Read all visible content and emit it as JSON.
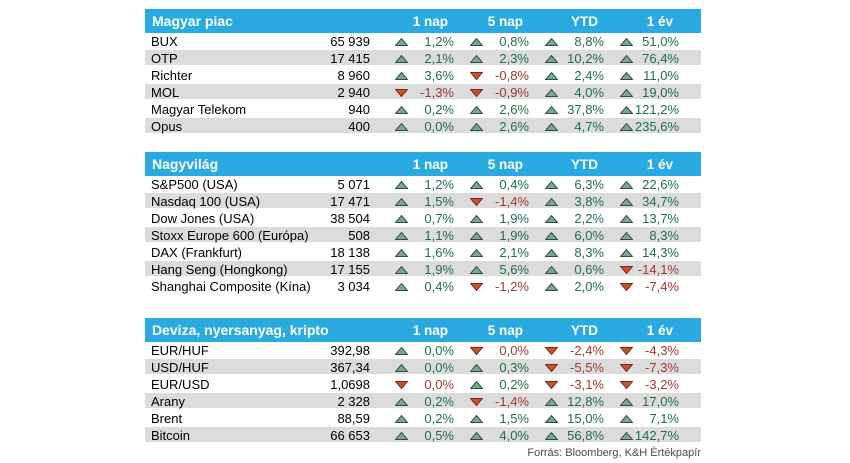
{
  "columns": [
    "1 nap",
    "5 nap",
    "YTD",
    "1 év"
  ],
  "footer": {
    "text": "Forrás: Bloomberg, K&H Értékpapír"
  },
  "colors": {
    "header_bg": "#29ABE2",
    "header_text": "#FFFFFF",
    "row_alt_bg": "#DCDCDC",
    "up_text": "#1E7048",
    "down_text": "#A0392F",
    "up_fill": "#7FA58D",
    "up_border": "#27553C",
    "down_fill": "#CC5229",
    "down_border": "#7E2817"
  },
  "tables": [
    {
      "title": "Magyar piac",
      "rows": [
        {
          "name": "BUX",
          "value": "65 939",
          "changes": [
            {
              "dir": "up",
              "text": "1,2%"
            },
            {
              "dir": "up",
              "text": "0,8%"
            },
            {
              "dir": "up",
              "text": "8,8%"
            },
            {
              "dir": "up",
              "text": "51,0%"
            }
          ]
        },
        {
          "name": "OTP",
          "value": "17 415",
          "changes": [
            {
              "dir": "up",
              "text": "2,1%"
            },
            {
              "dir": "up",
              "text": "2,3%"
            },
            {
              "dir": "up",
              "text": "10,2%"
            },
            {
              "dir": "up",
              "text": "76,4%"
            }
          ]
        },
        {
          "name": "Richter",
          "value": "8 960",
          "changes": [
            {
              "dir": "up",
              "text": "3,6%"
            },
            {
              "dir": "down",
              "text": "-0,8%"
            },
            {
              "dir": "up",
              "text": "2,4%"
            },
            {
              "dir": "up",
              "text": "11,0%"
            }
          ]
        },
        {
          "name": "MOL",
          "value": "2 940",
          "changes": [
            {
              "dir": "down",
              "text": "-1,3%"
            },
            {
              "dir": "down",
              "text": "-0,9%"
            },
            {
              "dir": "up",
              "text": "4,0%"
            },
            {
              "dir": "up",
              "text": "19,0%"
            }
          ]
        },
        {
          "name": "Magyar Telekom",
          "value": "940",
          "changes": [
            {
              "dir": "up",
              "text": "0,2%"
            },
            {
              "dir": "up",
              "text": "2,6%"
            },
            {
              "dir": "up",
              "text": "37,8%"
            },
            {
              "dir": "up",
              "text": "121,2%"
            }
          ]
        },
        {
          "name": "Opus",
          "value": "400",
          "changes": [
            {
              "dir": "up",
              "text": "0,0%"
            },
            {
              "dir": "up",
              "text": "2,6%"
            },
            {
              "dir": "up",
              "text": "4,7%"
            },
            {
              "dir": "up",
              "text": "235,6%"
            }
          ]
        }
      ]
    },
    {
      "title": "Nagyvilág",
      "rows": [
        {
          "name": "S&P500 (USA)",
          "value": "5 071",
          "changes": [
            {
              "dir": "up",
              "text": "1,2%"
            },
            {
              "dir": "up",
              "text": "0,4%"
            },
            {
              "dir": "up",
              "text": "6,3%"
            },
            {
              "dir": "up",
              "text": "22,6%"
            }
          ]
        },
        {
          "name": "Nasdaq 100 (USA)",
          "value": "17 471",
          "changes": [
            {
              "dir": "up",
              "text": "1,5%"
            },
            {
              "dir": "down",
              "text": "-1,4%"
            },
            {
              "dir": "up",
              "text": "3,8%"
            },
            {
              "dir": "up",
              "text": "34,7%"
            }
          ]
        },
        {
          "name": "Dow Jones (USA)",
          "value": "38 504",
          "changes": [
            {
              "dir": "up",
              "text": "0,7%"
            },
            {
              "dir": "up",
              "text": "1,9%"
            },
            {
              "dir": "up",
              "text": "2,2%"
            },
            {
              "dir": "up",
              "text": "13,7%"
            }
          ]
        },
        {
          "name": "Stoxx Europe 600 (Európa)",
          "value": "508",
          "changes": [
            {
              "dir": "up",
              "text": "1,1%"
            },
            {
              "dir": "up",
              "text": "1,9%"
            },
            {
              "dir": "up",
              "text": "6,0%"
            },
            {
              "dir": "up",
              "text": "8,3%"
            }
          ]
        },
        {
          "name": "DAX (Frankfurt)",
          "value": "18 138",
          "changes": [
            {
              "dir": "up",
              "text": "1,6%"
            },
            {
              "dir": "up",
              "text": "2,1%"
            },
            {
              "dir": "up",
              "text": "8,3%"
            },
            {
              "dir": "up",
              "text": "14,3%"
            }
          ]
        },
        {
          "name": "Hang Seng (Hongkong)",
          "value": "17 155",
          "changes": [
            {
              "dir": "up",
              "text": "1,9%"
            },
            {
              "dir": "up",
              "text": "5,6%"
            },
            {
              "dir": "up",
              "text": "0,6%"
            },
            {
              "dir": "down",
              "text": "-14,1%"
            }
          ]
        },
        {
          "name": "Shanghai Composite (Kína)",
          "value": "3 034",
          "changes": [
            {
              "dir": "up",
              "text": "0,4%"
            },
            {
              "dir": "down",
              "text": "-1,2%"
            },
            {
              "dir": "up",
              "text": "2,0%"
            },
            {
              "dir": "down",
              "text": "-7,4%"
            }
          ]
        }
      ]
    },
    {
      "title": "Deviza, nyersanyag, kripto",
      "rows": [
        {
          "name": "EUR/HUF",
          "value": "392,98",
          "changes": [
            {
              "dir": "up",
              "text": "0,0%"
            },
            {
              "dir": "down",
              "text": "0,0%"
            },
            {
              "dir": "down",
              "text": "-2,4%"
            },
            {
              "dir": "down",
              "text": "-4,3%"
            }
          ]
        },
        {
          "name": "USD/HUF",
          "value": "367,34",
          "changes": [
            {
              "dir": "up",
              "text": "0,0%"
            },
            {
              "dir": "up",
              "text": "0,3%"
            },
            {
              "dir": "down",
              "text": "-5,5%"
            },
            {
              "dir": "down",
              "text": "-7,3%"
            }
          ]
        },
        {
          "name": "EUR/USD",
          "value": "1,0698",
          "changes": [
            {
              "dir": "down",
              "text": "0,0%"
            },
            {
              "dir": "up",
              "text": "0,2%"
            },
            {
              "dir": "down",
              "text": "-3,1%"
            },
            {
              "dir": "down",
              "text": "-3,2%"
            }
          ]
        },
        {
          "name": "Arany",
          "value": "2 328",
          "changes": [
            {
              "dir": "up",
              "text": "0,2%"
            },
            {
              "dir": "down",
              "text": "-1,4%"
            },
            {
              "dir": "up",
              "text": "12,8%"
            },
            {
              "dir": "up",
              "text": "17,0%"
            }
          ]
        },
        {
          "name": "Brent",
          "value": "88,59",
          "changes": [
            {
              "dir": "up",
              "text": "0,2%"
            },
            {
              "dir": "up",
              "text": "1,5%"
            },
            {
              "dir": "up",
              "text": "15,0%"
            },
            {
              "dir": "up",
              "text": "7,1%"
            }
          ]
        },
        {
          "name": "Bitcoin",
          "value": "66 653",
          "changes": [
            {
              "dir": "up",
              "text": "0,5%"
            },
            {
              "dir": "up",
              "text": "4,0%"
            },
            {
              "dir": "up",
              "text": "56,8%"
            },
            {
              "dir": "up",
              "text": "142,7%"
            }
          ]
        }
      ]
    }
  ]
}
